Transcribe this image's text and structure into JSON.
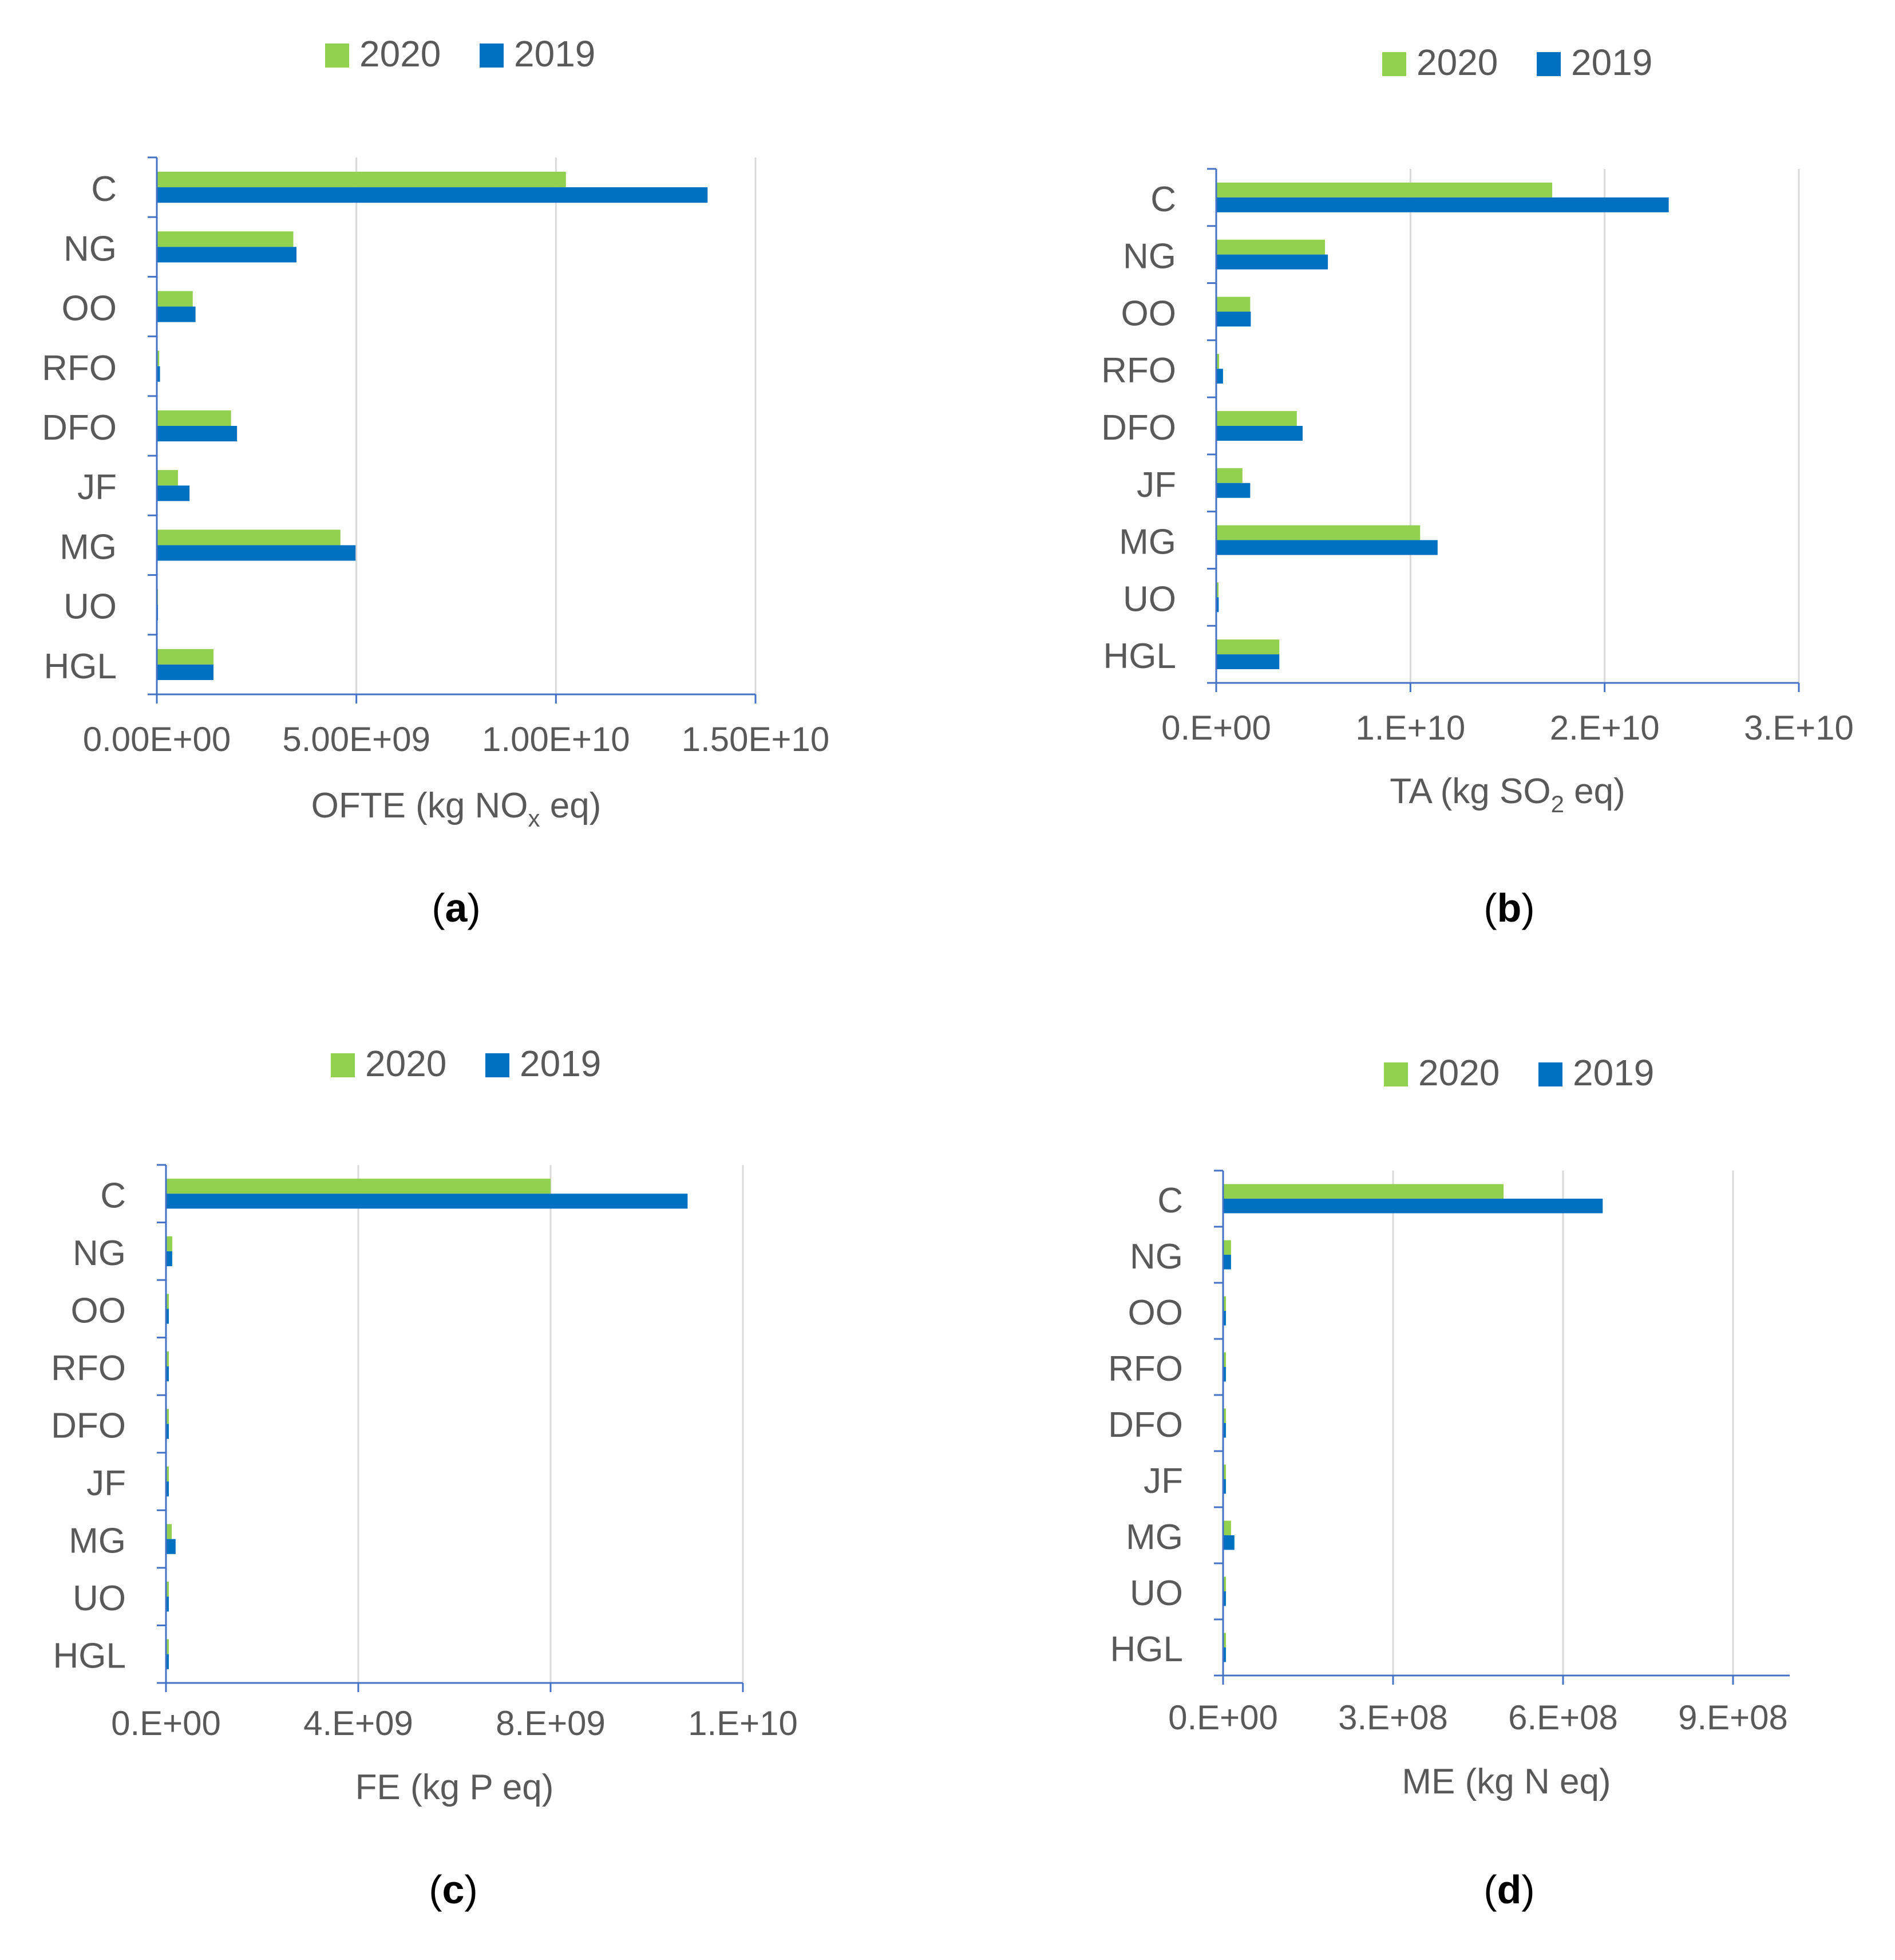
{
  "colors": {
    "series_2020": "#92d050",
    "series_2019": "#0070c0",
    "axis": "#4472c4",
    "grid": "#d9d9d9",
    "text": "#595959",
    "panel_label": "#000000"
  },
  "chart_data": [
    {
      "type": "bar",
      "orientation": "horizontal",
      "panel_label": "a",
      "xlabel": "OFTE (kg NO",
      "xlabel_sub": "x",
      "xlabel_tail": " eq)",
      "categories": [
        "C",
        "NG",
        "OO",
        "RFO",
        "DFO",
        "JF",
        "MG",
        "UO",
        "HGL"
      ],
      "series": [
        {
          "name": "2020",
          "color": "#92d050",
          "values": [
            10250000000,
            3420000000,
            900000000,
            60000000,
            1860000000,
            530000000,
            4600000000,
            15000000,
            1420000000
          ]
        },
        {
          "name": "2019",
          "color": "#0070c0",
          "values": [
            13800000000,
            3500000000,
            970000000,
            80000000,
            2010000000,
            820000000,
            4980000000,
            20000000,
            1420000000
          ]
        }
      ],
      "x_ticks": [
        "0.00E+00",
        "5.00E+09",
        "1.00E+10",
        "1.50E+10"
      ],
      "x_tick_values": [
        0,
        5000000000,
        10000000000,
        15000000000
      ],
      "xlim": [
        0,
        15000000000
      ],
      "legend": [
        "2020",
        "2019"
      ],
      "legend_position": "top",
      "grid": true
    },
    {
      "type": "bar",
      "orientation": "horizontal",
      "panel_label": "b",
      "xlabel": "TA (kg SO",
      "xlabel_sub": "2",
      "xlabel_tail": " eq)",
      "categories": [
        "C",
        "NG",
        "OO",
        "RFO",
        "DFO",
        "JF",
        "MG",
        "UO",
        "HGL"
      ],
      "series": [
        {
          "name": "2020",
          "color": "#92d050",
          "values": [
            17300000000,
            5600000000,
            1750000000,
            150000000,
            4150000000,
            1350000000,
            10500000000,
            120000000,
            3250000000
          ]
        },
        {
          "name": "2019",
          "color": "#0070c0",
          "values": [
            23300000000,
            5750000000,
            1780000000,
            350000000,
            4450000000,
            1750000000,
            11400000000,
            130000000,
            3250000000
          ]
        }
      ],
      "x_ticks": [
        "0.E+00",
        "1.E+10",
        "2.E+10",
        "3.E+10"
      ],
      "x_tick_values": [
        0,
        10000000000,
        20000000000,
        30000000000
      ],
      "xlim": [
        0,
        30000000000
      ],
      "legend": [
        "2020",
        "2019"
      ],
      "legend_position": "top",
      "grid": true
    },
    {
      "type": "bar",
      "orientation": "horizontal",
      "panel_label": "c",
      "xlabel": "FE (kg P eq)",
      "categories": [
        "C",
        "NG",
        "OO",
        "RFO",
        "DFO",
        "JF",
        "MG",
        "UO",
        "HGL"
      ],
      "series": [
        {
          "name": "2020",
          "color": "#92d050",
          "values": [
            8000000000,
            130000000,
            60000000,
            60000000,
            60000000,
            60000000,
            120000000,
            60000000,
            60000000
          ]
        },
        {
          "name": "2019",
          "color": "#0070c0",
          "values": [
            10850000000,
            130000000,
            60000000,
            60000000,
            60000000,
            60000000,
            200000000,
            60000000,
            60000000
          ]
        }
      ],
      "x_ticks": [
        "0.E+00",
        "4.E+09",
        "8.E+09",
        "1.E+10"
      ],
      "x_tick_values": [
        0,
        4000000000,
        8000000000,
        12000000000
      ],
      "xlim": [
        0,
        12000000000
      ],
      "legend": [
        "2020",
        "2019"
      ],
      "legend_position": "top",
      "grid": true
    },
    {
      "type": "bar",
      "orientation": "horizontal",
      "panel_label": "d",
      "xlabel": "ME (kg N eq)",
      "categories": [
        "C",
        "NG",
        "OO",
        "RFO",
        "DFO",
        "JF",
        "MG",
        "UO",
        "HGL"
      ],
      "series": [
        {
          "name": "2020",
          "color": "#92d050",
          "values": [
            495000000,
            14000000,
            5000000,
            5000000,
            5000000,
            5000000,
            14000000,
            5000000,
            5000000
          ]
        },
        {
          "name": "2019",
          "color": "#0070c0",
          "values": [
            670000000,
            14000000,
            5000000,
            5000000,
            5000000,
            5000000,
            20000000,
            5000000,
            5000000
          ]
        }
      ],
      "x_ticks": [
        "0.E+00",
        "3.E+08",
        "6.E+08",
        "9.E+08"
      ],
      "x_tick_values": [
        0,
        300000000,
        600000000,
        900000000
      ],
      "xlim": [
        0,
        1000000000
      ],
      "legend": [
        "2020",
        "2019"
      ],
      "legend_position": "top",
      "grid": true
    }
  ]
}
